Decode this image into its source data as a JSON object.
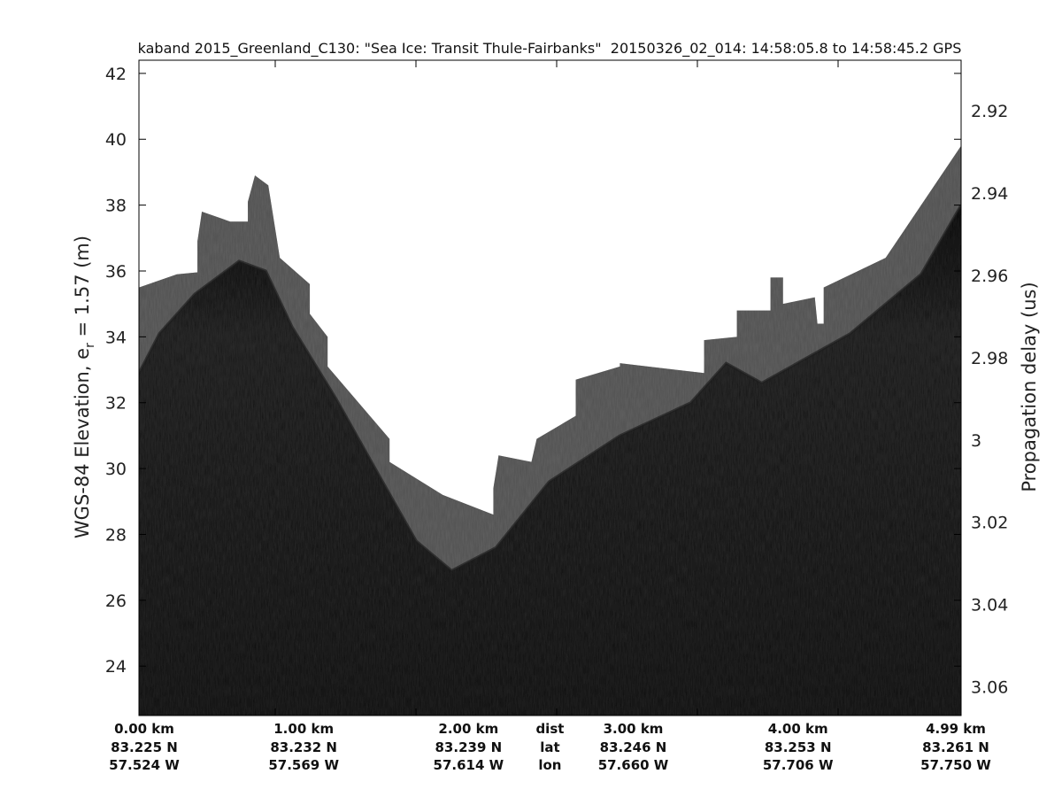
{
  "chart_data": {
    "type": "heatmap",
    "title": "kaband 2015_Greenland_C130: \"Sea Ice: Transit Thule-Fairbanks\"  20150326_02_014: 14:58:05.8 to 14:58:45.2 GPS",
    "ylabel": "WGS-84 Elevation, e",
    "ylabel_sub": "r",
    "ylabel_tail": " = 1.57 (m)",
    "y2label": "Propagation delay (us)",
    "xlim_km": [
      0,
      4.99
    ],
    "ylim": [
      22.5,
      42.4
    ],
    "y2lim": [
      2.9077,
      3.067
    ],
    "yticks": [
      24,
      26,
      28,
      30,
      32,
      34,
      36,
      38,
      40,
      42
    ],
    "y2ticks": [
      "2.92",
      "2.94",
      "2.96",
      "2.98",
      "3",
      "3.02",
      "3.04",
      "3.06"
    ],
    "colormap": "gray",
    "x_labels": [
      {
        "km": 0,
        "dist": "0.00 km",
        "lat": "83.225 N",
        "lon": "57.524 W"
      },
      {
        "km": 1,
        "dist": "1.00 km",
        "lat": "83.232 N",
        "lon": "57.569 W"
      },
      {
        "km": 2,
        "dist": "2.00 km",
        "lat": "83.239 N",
        "lon": "57.614 W"
      },
      {
        "km": 3,
        "dist": "3.00 km",
        "lat": "83.246 N",
        "lon": "57.660 W"
      },
      {
        "km": 4,
        "dist": "4.00 km",
        "lat": "83.253 N",
        "lon": "57.706 W"
      },
      {
        "km": 4.99,
        "dist": "4.99 km",
        "lat": "83.261 N",
        "lon": "57.750 W"
      }
    ],
    "row_names": {
      "dist": "dist",
      "lat": "lat",
      "lon": "lon",
      "km": 2.5
    },
    "data_top_edge": {
      "km": [
        0,
        0.23,
        0.355,
        0.355,
        0.382,
        0.554,
        0.661,
        0.661,
        0.704,
        0.785,
        0.855,
        1.037,
        1.037,
        1.145,
        1.145,
        1.521,
        1.521,
        1.844,
        2.151,
        2.151,
        2.183,
        2.382,
        2.414,
        2.651,
        2.651,
        2.919,
        2.919,
        3.43,
        3.43,
        3.629,
        3.629,
        3.833,
        3.833,
        3.909,
        3.909,
        4.102,
        4.118,
        4.156,
        4.156,
        4.532,
        4.99
      ],
      "elev": [
        35.5,
        35.9,
        35.96,
        36.9,
        37.8,
        37.5,
        37.5,
        38.1,
        38.9,
        38.6,
        36.4,
        35.6,
        34.7,
        34.0,
        33.1,
        30.9,
        30.2,
        29.2,
        28.6,
        29.4,
        30.4,
        30.2,
        30.9,
        31.6,
        32.7,
        33.1,
        33.2,
        32.9,
        33.9,
        34.0,
        34.8,
        34.8,
        35.8,
        35.8,
        35.0,
        35.2,
        34.4,
        34.4,
        35.5,
        36.4,
        39.8
      ]
    },
    "surface": {
      "km": [
        0,
        0.124,
        0.339,
        0.608,
        0.77,
        0.93,
        1.199,
        1.468,
        1.683,
        1.898,
        2.167,
        2.489,
        2.919,
        3.349,
        3.564,
        3.78,
        3.995,
        4.317,
        4.747,
        4.99
      ],
      "elev": [
        32.9,
        34.1,
        35.3,
        36.3,
        36.0,
        34.3,
        32.1,
        29.7,
        27.8,
        26.9,
        27.6,
        29.6,
        31.0,
        32.0,
        33.2,
        32.6,
        33.2,
        34.1,
        35.9,
        38.0
      ]
    }
  }
}
